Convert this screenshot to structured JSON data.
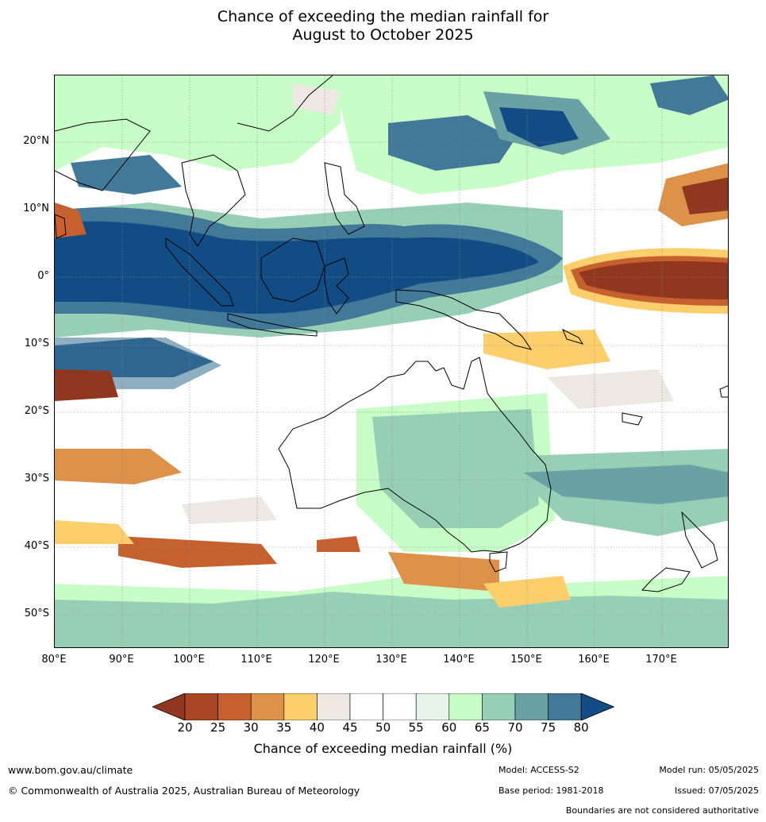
{
  "title": {
    "line1": "Chance of exceeding the median rainfall for",
    "line2": "August to October 2025"
  },
  "map": {
    "lat_ticks": [
      "20°N",
      "10°N",
      "0°",
      "10°S",
      "20°S",
      "30°S",
      "40°S",
      "50°S"
    ],
    "lon_ticks": [
      "80°E",
      "90°E",
      "100°E",
      "110°E",
      "120°E",
      "130°E",
      "140°E",
      "150°E",
      "160°E",
      "170°E"
    ]
  },
  "legend": {
    "title": "Chance of exceeding median rainfall (%)",
    "ticks": [
      "20",
      "25",
      "30",
      "35",
      "40",
      "45",
      "50",
      "55",
      "60",
      "65",
      "70",
      "75",
      "80"
    ],
    "colors": [
      "#913720",
      "#a94523",
      "#c6612f",
      "#de9249",
      "#fdce6c",
      "#ede8e2",
      "#ffffff",
      "#ffffff",
      "#e7f5e8",
      "#c8fdc8",
      "#96cfb5",
      "#6aa1a5",
      "#427898",
      "#124c85"
    ]
  },
  "footer": {
    "website": "www.bom.gov.au/climate",
    "copyright": "© Commonwealth of Australia 2025, Australian Bureau of Meteorology",
    "model": "Model: ACCESS-S2",
    "base_period": "Base period: 1981-2018",
    "model_run": "Model run: 05/05/2025",
    "issued": "Issued: 07/05/2025",
    "disclaimer": "Boundaries are not considered authoritative"
  }
}
